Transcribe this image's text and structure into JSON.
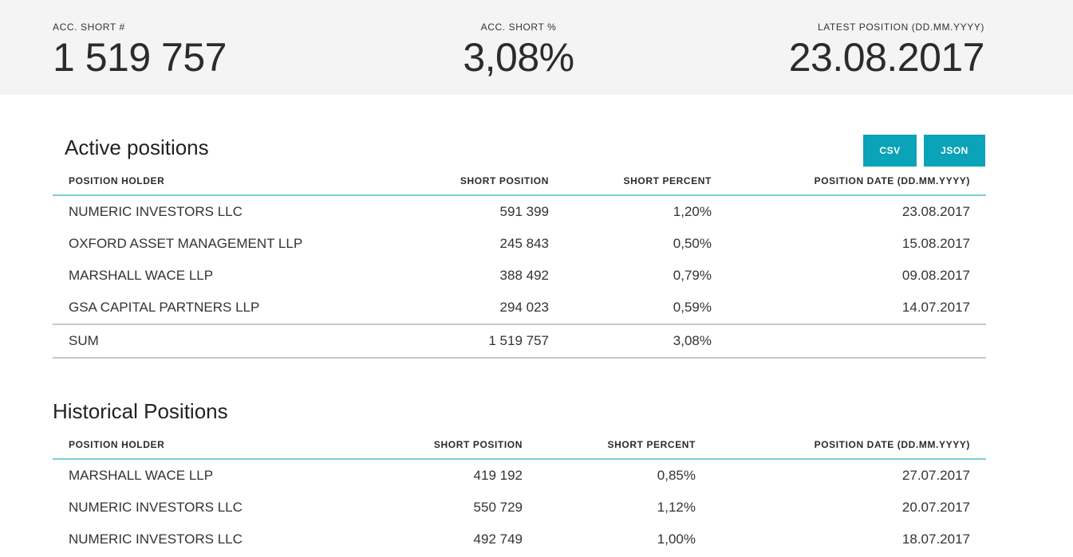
{
  "summary": {
    "acc_short_num": {
      "label": "ACC. SHORT #",
      "value": "1 519 757"
    },
    "acc_short_pct": {
      "label": "ACC. SHORT %",
      "value": "3,08%"
    },
    "latest_position": {
      "label": "LATEST POSITION (DD.MM.YYYY)",
      "value": "23.08.2017"
    }
  },
  "active": {
    "title": "Active positions",
    "csv_label": "CSV",
    "json_label": "JSON",
    "headers": [
      "POSITION HOLDER",
      "SHORT POSITION",
      "SHORT PERCENT",
      "POSITION DATE (DD.MM.YYYY)"
    ],
    "rows": [
      {
        "holder": "NUMERIC INVESTORS LLC",
        "position": "591 399",
        "percent": "1,20%",
        "date": "23.08.2017"
      },
      {
        "holder": "OXFORD ASSET MANAGEMENT LLP",
        "position": "245 843",
        "percent": "0,50%",
        "date": "15.08.2017"
      },
      {
        "holder": "MARSHALL WACE LLP",
        "position": "388 492",
        "percent": "0,79%",
        "date": "09.08.2017"
      },
      {
        "holder": "GSA CAPITAL PARTNERS LLP",
        "position": "294 023",
        "percent": "0,59%",
        "date": "14.07.2017"
      }
    ],
    "sum": {
      "label": "SUM",
      "position": "1 519 757",
      "percent": "3,08%",
      "date": ""
    }
  },
  "historical": {
    "title": "Historical Positions",
    "headers": [
      "POSITION HOLDER",
      "SHORT POSITION",
      "SHORT PERCENT",
      "POSITION DATE (DD.MM.YYYY)"
    ],
    "rows": [
      {
        "holder": "MARSHALL WACE LLP",
        "position": "419 192",
        "percent": "0,85%",
        "date": "27.07.2017"
      },
      {
        "holder": "NUMERIC INVESTORS LLC",
        "position": "550 729",
        "percent": "1,12%",
        "date": "20.07.2017"
      },
      {
        "holder": "NUMERIC INVESTORS LLC",
        "position": "492 749",
        "percent": "1,00%",
        "date": "18.07.2017"
      }
    ]
  },
  "colors": {
    "accent": "#0aa3b8",
    "header_rule": "#79cfd4",
    "summary_bg": "#f4f4f4"
  }
}
